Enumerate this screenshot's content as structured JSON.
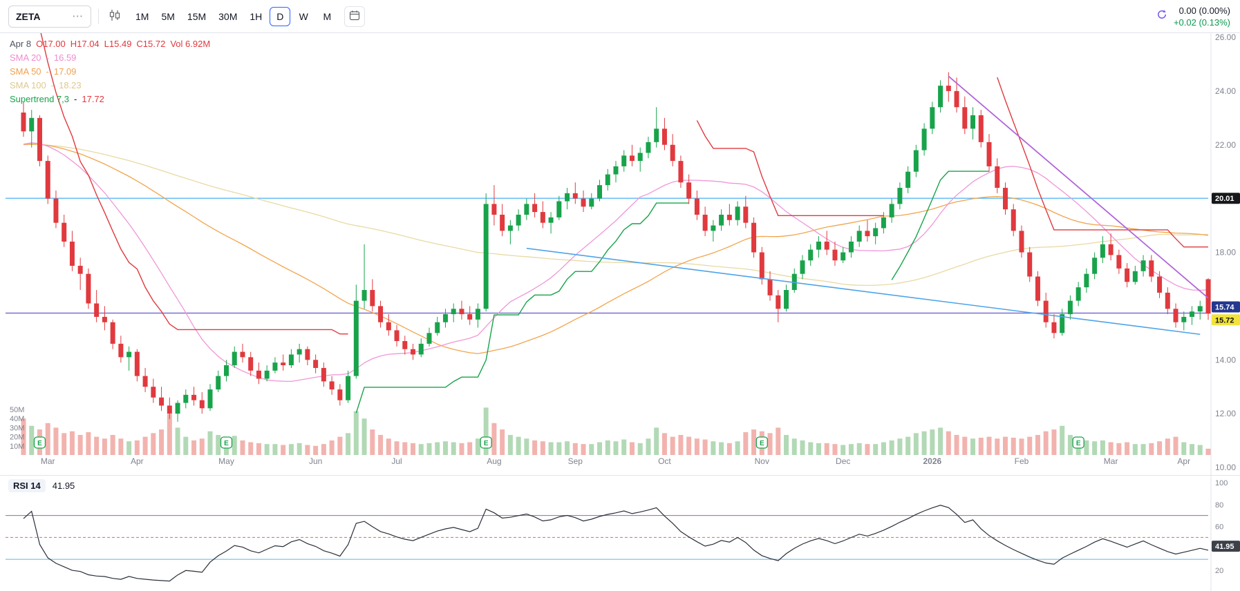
{
  "toolbar": {
    "symbol": "ZETA",
    "more_label": "···",
    "timeframes": [
      "1M",
      "5M",
      "15M",
      "30M",
      "1H",
      "D",
      "W",
      "M"
    ],
    "selected_timeframe": "D",
    "change_top": "0.00 (0.00%)",
    "change_bottom": "+0.02 (0.13%)"
  },
  "legend": {
    "date": "Apr 8",
    "o": "O17.00",
    "h": "H17.04",
    "l": "L15.49",
    "c": "C15.72",
    "vol": "Vol 6.92M",
    "sep": "-",
    "sma20": {
      "label": "SMA 20",
      "value": "16.59"
    },
    "sma50": {
      "label": "SMA 50",
      "value": "17.09"
    },
    "sma100": {
      "label": "SMA 100",
      "value": "18.23"
    },
    "supertrend": {
      "label": "Supertrend 7,3",
      "value": "17.72"
    }
  },
  "rsi": {
    "label": "RSI 14",
    "value": "41.95",
    "badge": "41.95",
    "ticks": [
      {
        "v": 100,
        "label": "100"
      },
      {
        "v": 80,
        "label": "80"
      },
      {
        "v": 60,
        "label": "60"
      },
      {
        "v": 40,
        "label": "40"
      },
      {
        "v": 20,
        "label": "20"
      }
    ],
    "levels": [
      {
        "v": 70,
        "color": "#a855c8",
        "dash": ""
      },
      {
        "v": 50,
        "color": "#e06666",
        "dash": "4,3"
      },
      {
        "v": 30,
        "color": "#5ab4ef",
        "dash": ""
      }
    ]
  },
  "colors": {
    "up": "#18a34b",
    "down": "#e0393e",
    "vol_up": "#b2d9b5",
    "vol_down": "#f2b3ae",
    "sma20": "#f096d8",
    "sma50": "#f2a44c",
    "sma100": "#e8d9a2",
    "supertrend_up": "#16a34a",
    "supertrend_down": "#e0393e",
    "axis_text": "#80838e",
    "grid": "#e0e3eb",
    "rsi_line": "#2a2e39"
  },
  "chart_data": {
    "type": "candlestick",
    "symbol": "ZETA",
    "timeframe": "D",
    "price_min": 10,
    "price_max": 26,
    "price_ticks": [
      {
        "v": 26,
        "label": "26.00"
      },
      {
        "v": 24,
        "label": "24.00"
      },
      {
        "v": 22,
        "label": "22.00"
      },
      {
        "v": 20,
        "label": "20.00"
      },
      {
        "v": 18,
        "label": "18.00"
      },
      {
        "v": 16,
        "label": "16.00"
      },
      {
        "v": 14,
        "label": "14.00"
      },
      {
        "v": 12,
        "label": "12.00"
      },
      {
        "v": 10,
        "label": "10.00"
      }
    ],
    "volume_ticks": [
      {
        "v": 50,
        "label": "50M"
      },
      {
        "v": 40,
        "label": "40M"
      },
      {
        "v": 30,
        "label": "30M"
      },
      {
        "v": 20,
        "label": "20M"
      },
      {
        "v": 10,
        "label": "10M"
      }
    ],
    "months": [
      {
        "label": "Mar",
        "i": 3
      },
      {
        "label": "Apr",
        "i": 14
      },
      {
        "label": "May",
        "i": 25
      },
      {
        "label": "Jun",
        "i": 36
      },
      {
        "label": "Jul",
        "i": 46
      },
      {
        "label": "Aug",
        "i": 58
      },
      {
        "label": "Sep",
        "i": 68
      },
      {
        "label": "Oct",
        "i": 79
      },
      {
        "label": "Nov",
        "i": 91
      },
      {
        "label": "Dec",
        "i": 101
      },
      {
        "label": "2026",
        "i": 112
      },
      {
        "label": "Feb",
        "i": 123
      },
      {
        "label": "Mar",
        "i": 134
      },
      {
        "label": "Apr",
        "i": 143
      }
    ],
    "earnings_idx": [
      2,
      25,
      57,
      91,
      130
    ],
    "price_lines": [
      {
        "p": 20.01,
        "label": "20.01",
        "line_color": "#56b8f5",
        "badge_bg": "#17181b",
        "badge_fg": "#ffffff"
      },
      {
        "p": 15.74,
        "label": "15.74",
        "line_color": "#7a6fd0",
        "badge_bg": "#24388f",
        "badge_fg": "#ffffff"
      }
    ],
    "current_price": {
      "p": 15.72,
      "label": "15.72",
      "badge_bg": "#f2e33c",
      "badge_fg": "#111111"
    },
    "trendlines": [
      {
        "i1": 62,
        "p1": 18.15,
        "i2": 145,
        "p2": 14.95,
        "color": "#4da3e8",
        "width": 1.6
      },
      {
        "i1": 114,
        "p1": 24.55,
        "i2": 146,
        "p2": 16.3,
        "color": "#b066d9",
        "width": 1.8
      }
    ],
    "indicators": {
      "sma": [
        20,
        50,
        100
      ],
      "supertrend": [
        7,
        3
      ],
      "rsi": [
        14
      ]
    },
    "candles": [
      [
        23.2,
        23.6,
        22.3,
        22.5,
        40
      ],
      [
        22.5,
        23.3,
        21.9,
        23.0,
        32
      ],
      [
        23.0,
        23.1,
        21.2,
        21.4,
        28
      ],
      [
        21.4,
        21.6,
        19.8,
        20.0,
        35
      ],
      [
        20.0,
        20.3,
        18.9,
        19.1,
        30
      ],
      [
        19.1,
        19.4,
        18.2,
        18.4,
        24
      ],
      [
        18.4,
        18.8,
        17.3,
        17.5,
        26
      ],
      [
        17.5,
        17.8,
        16.6,
        17.2,
        22
      ],
      [
        17.2,
        17.4,
        15.9,
        16.1,
        25
      ],
      [
        16.1,
        16.6,
        15.4,
        15.6,
        20
      ],
      [
        15.6,
        16.0,
        15.1,
        15.4,
        18
      ],
      [
        15.4,
        15.5,
        14.4,
        14.6,
        22
      ],
      [
        14.6,
        14.9,
        13.9,
        14.1,
        18
      ],
      [
        14.1,
        14.5,
        13.6,
        14.3,
        15
      ],
      [
        14.3,
        14.4,
        13.2,
        13.4,
        16
      ],
      [
        13.4,
        13.7,
        12.8,
        13.0,
        20
      ],
      [
        13.0,
        13.3,
        12.4,
        12.6,
        24
      ],
      [
        12.6,
        13.0,
        12.1,
        12.3,
        28
      ],
      [
        12.3,
        12.6,
        11.8,
        12.0,
        45
      ],
      [
        12.0,
        12.5,
        11.7,
        12.4,
        30
      ],
      [
        12.4,
        12.9,
        12.2,
        12.7,
        20
      ],
      [
        12.7,
        13.0,
        12.3,
        12.5,
        16
      ],
      [
        12.5,
        12.8,
        12.0,
        12.2,
        18
      ],
      [
        12.2,
        13.1,
        12.1,
        12.9,
        26
      ],
      [
        12.9,
        13.6,
        12.8,
        13.4,
        22
      ],
      [
        13.4,
        14.0,
        13.2,
        13.8,
        19
      ],
      [
        13.8,
        14.5,
        13.7,
        14.3,
        21
      ],
      [
        14.3,
        14.6,
        13.9,
        14.1,
        16
      ],
      [
        14.1,
        14.3,
        13.4,
        13.6,
        14
      ],
      [
        13.6,
        13.9,
        13.1,
        13.3,
        13
      ],
      [
        13.3,
        13.8,
        13.2,
        13.6,
        12
      ],
      [
        13.6,
        14.1,
        13.5,
        13.9,
        12
      ],
      [
        13.9,
        14.2,
        13.6,
        13.8,
        11
      ],
      [
        13.8,
        14.4,
        13.7,
        14.2,
        12
      ],
      [
        14.2,
        14.6,
        13.9,
        14.4,
        13
      ],
      [
        14.4,
        14.5,
        13.8,
        14.0,
        11
      ],
      [
        14.0,
        14.2,
        13.5,
        13.7,
        10
      ],
      [
        13.7,
        13.9,
        13.0,
        13.2,
        12
      ],
      [
        13.2,
        13.4,
        12.7,
        12.9,
        16
      ],
      [
        12.9,
        13.1,
        12.3,
        12.5,
        20
      ],
      [
        12.5,
        13.6,
        12.4,
        13.4,
        24
      ],
      [
        13.4,
        16.8,
        13.3,
        16.2,
        48
      ],
      [
        16.2,
        18.3,
        15.9,
        16.6,
        40
      ],
      [
        16.6,
        17.0,
        15.8,
        16.0,
        28
      ],
      [
        16.0,
        16.2,
        15.2,
        15.4,
        22
      ],
      [
        15.4,
        15.7,
        14.9,
        15.1,
        18
      ],
      [
        15.1,
        15.3,
        14.5,
        14.7,
        15
      ],
      [
        14.7,
        14.9,
        14.2,
        14.4,
        14
      ],
      [
        14.4,
        14.6,
        14.0,
        14.2,
        13
      ],
      [
        14.2,
        14.8,
        14.1,
        14.6,
        12
      ],
      [
        14.6,
        15.2,
        14.5,
        15.0,
        13
      ],
      [
        15.0,
        15.6,
        14.9,
        15.4,
        14
      ],
      [
        15.4,
        15.9,
        15.2,
        15.7,
        15
      ],
      [
        15.7,
        16.1,
        15.4,
        15.9,
        14
      ],
      [
        15.9,
        16.2,
        15.5,
        15.7,
        13
      ],
      [
        15.7,
        16.0,
        15.3,
        15.5,
        14
      ],
      [
        15.5,
        16.1,
        15.2,
        15.9,
        18
      ],
      [
        15.9,
        20.2,
        15.8,
        19.8,
        52
      ],
      [
        19.8,
        20.5,
        19.0,
        19.4,
        35
      ],
      [
        19.4,
        19.8,
        18.6,
        18.8,
        28
      ],
      [
        18.8,
        19.2,
        18.3,
        19.0,
        22
      ],
      [
        19.0,
        19.6,
        18.8,
        19.4,
        20
      ],
      [
        19.4,
        20.0,
        19.2,
        19.8,
        18
      ],
      [
        19.8,
        20.2,
        19.3,
        19.5,
        16
      ],
      [
        19.5,
        19.9,
        18.9,
        19.1,
        15
      ],
      [
        19.1,
        19.5,
        18.7,
        19.3,
        14
      ],
      [
        19.3,
        20.1,
        19.2,
        19.9,
        14
      ],
      [
        19.9,
        20.4,
        19.6,
        20.2,
        15
      ],
      [
        20.2,
        20.6,
        19.8,
        20.0,
        13
      ],
      [
        20.0,
        20.3,
        19.5,
        19.7,
        12
      ],
      [
        19.7,
        20.2,
        19.6,
        20.0,
        12
      ],
      [
        20.0,
        20.7,
        19.9,
        20.5,
        14
      ],
      [
        20.5,
        21.1,
        20.3,
        20.9,
        16
      ],
      [
        20.9,
        21.4,
        20.6,
        21.2,
        15
      ],
      [
        21.2,
        21.8,
        21.0,
        21.6,
        17
      ],
      [
        21.6,
        22.0,
        21.2,
        21.4,
        14
      ],
      [
        21.4,
        21.9,
        21.0,
        21.7,
        13
      ],
      [
        21.7,
        22.3,
        21.5,
        22.1,
        18
      ],
      [
        22.1,
        23.4,
        21.9,
        22.6,
        30
      ],
      [
        22.6,
        23.0,
        21.8,
        22.0,
        24
      ],
      [
        22.0,
        22.4,
        21.2,
        21.4,
        20
      ],
      [
        21.4,
        21.6,
        20.4,
        20.6,
        22
      ],
      [
        20.6,
        20.9,
        19.8,
        20.0,
        20
      ],
      [
        20.0,
        20.3,
        19.2,
        19.4,
        18
      ],
      [
        19.4,
        19.7,
        18.6,
        18.8,
        17
      ],
      [
        18.8,
        19.2,
        18.4,
        19.0,
        15
      ],
      [
        19.0,
        19.6,
        18.8,
        19.4,
        14
      ],
      [
        19.4,
        19.8,
        19.0,
        19.2,
        13
      ],
      [
        19.2,
        19.9,
        19.0,
        19.7,
        15
      ],
      [
        19.7,
        20.1,
        18.9,
        19.1,
        25
      ],
      [
        19.1,
        19.3,
        17.8,
        18.0,
        28
      ],
      [
        18.0,
        18.2,
        16.8,
        17.0,
        26
      ],
      [
        17.0,
        17.3,
        16.2,
        16.4,
        24
      ],
      [
        16.4,
        16.6,
        15.4,
        15.9,
        30
      ],
      [
        15.9,
        16.8,
        15.8,
        16.6,
        22
      ],
      [
        16.6,
        17.4,
        16.5,
        17.2,
        18
      ],
      [
        17.2,
        17.9,
        17.0,
        17.7,
        16
      ],
      [
        17.7,
        18.3,
        17.5,
        18.1,
        14
      ],
      [
        18.1,
        18.6,
        17.8,
        18.4,
        13
      ],
      [
        18.4,
        18.8,
        17.9,
        18.1,
        13
      ],
      [
        18.1,
        18.4,
        17.5,
        17.7,
        12
      ],
      [
        17.7,
        18.2,
        17.6,
        18.0,
        11
      ],
      [
        18.0,
        18.6,
        17.8,
        18.4,
        12
      ],
      [
        18.4,
        19.0,
        18.2,
        18.8,
        13
      ],
      [
        18.8,
        19.2,
        18.4,
        18.6,
        12
      ],
      [
        18.6,
        19.1,
        18.3,
        18.9,
        12
      ],
      [
        18.9,
        19.5,
        18.7,
        19.3,
        14
      ],
      [
        19.3,
        20.0,
        19.1,
        19.8,
        16
      ],
      [
        19.8,
        20.6,
        19.6,
        20.4,
        18
      ],
      [
        20.4,
        21.2,
        20.2,
        21.0,
        20
      ],
      [
        21.0,
        22.0,
        20.8,
        21.8,
        24
      ],
      [
        21.8,
        22.8,
        21.6,
        22.6,
        26
      ],
      [
        22.6,
        23.6,
        22.4,
        23.4,
        28
      ],
      [
        23.4,
        24.4,
        23.2,
        24.2,
        30
      ],
      [
        24.2,
        24.7,
        23.6,
        24.0,
        26
      ],
      [
        24.0,
        24.5,
        23.2,
        23.4,
        22
      ],
      [
        23.4,
        23.8,
        22.4,
        22.6,
        20
      ],
      [
        22.6,
        23.4,
        22.2,
        23.1,
        18
      ],
      [
        23.1,
        23.3,
        21.9,
        22.1,
        19
      ],
      [
        22.1,
        22.4,
        21.0,
        21.2,
        20
      ],
      [
        21.2,
        21.5,
        20.2,
        20.4,
        18
      ],
      [
        20.4,
        20.6,
        19.4,
        19.6,
        20
      ],
      [
        19.6,
        19.8,
        18.6,
        18.8,
        19
      ],
      [
        18.8,
        19.0,
        17.8,
        18.0,
        18
      ],
      [
        18.0,
        18.2,
        16.9,
        17.1,
        20
      ],
      [
        17.1,
        17.3,
        16.0,
        16.2,
        22
      ],
      [
        16.2,
        16.5,
        15.2,
        15.4,
        26
      ],
      [
        15.4,
        15.7,
        14.8,
        15.0,
        28
      ],
      [
        15.0,
        15.9,
        14.9,
        15.7,
        32
      ],
      [
        15.7,
        16.4,
        15.5,
        16.2,
        22
      ],
      [
        16.2,
        16.9,
        16.0,
        16.7,
        18
      ],
      [
        16.7,
        17.4,
        16.5,
        17.2,
        16
      ],
      [
        17.2,
        18.0,
        17.0,
        17.8,
        15
      ],
      [
        17.8,
        18.6,
        17.6,
        18.3,
        16
      ],
      [
        18.3,
        18.7,
        17.7,
        17.9,
        14
      ],
      [
        17.9,
        18.1,
        17.2,
        17.4,
        13
      ],
      [
        17.4,
        17.6,
        16.7,
        16.9,
        14
      ],
      [
        16.9,
        17.5,
        16.8,
        17.3,
        12
      ],
      [
        17.3,
        17.9,
        17.1,
        17.7,
        12
      ],
      [
        17.7,
        17.9,
        16.9,
        17.1,
        13
      ],
      [
        17.1,
        17.3,
        16.3,
        16.5,
        15
      ],
      [
        16.5,
        16.7,
        15.7,
        15.9,
        18
      ],
      [
        15.9,
        16.1,
        15.2,
        15.4,
        20
      ],
      [
        15.4,
        15.8,
        15.1,
        15.6,
        14
      ],
      [
        15.6,
        16.0,
        15.3,
        15.8,
        12
      ],
      [
        15.8,
        16.2,
        15.5,
        16.0,
        11
      ],
      [
        17.0,
        17.04,
        15.49,
        15.72,
        6.92
      ]
    ]
  }
}
